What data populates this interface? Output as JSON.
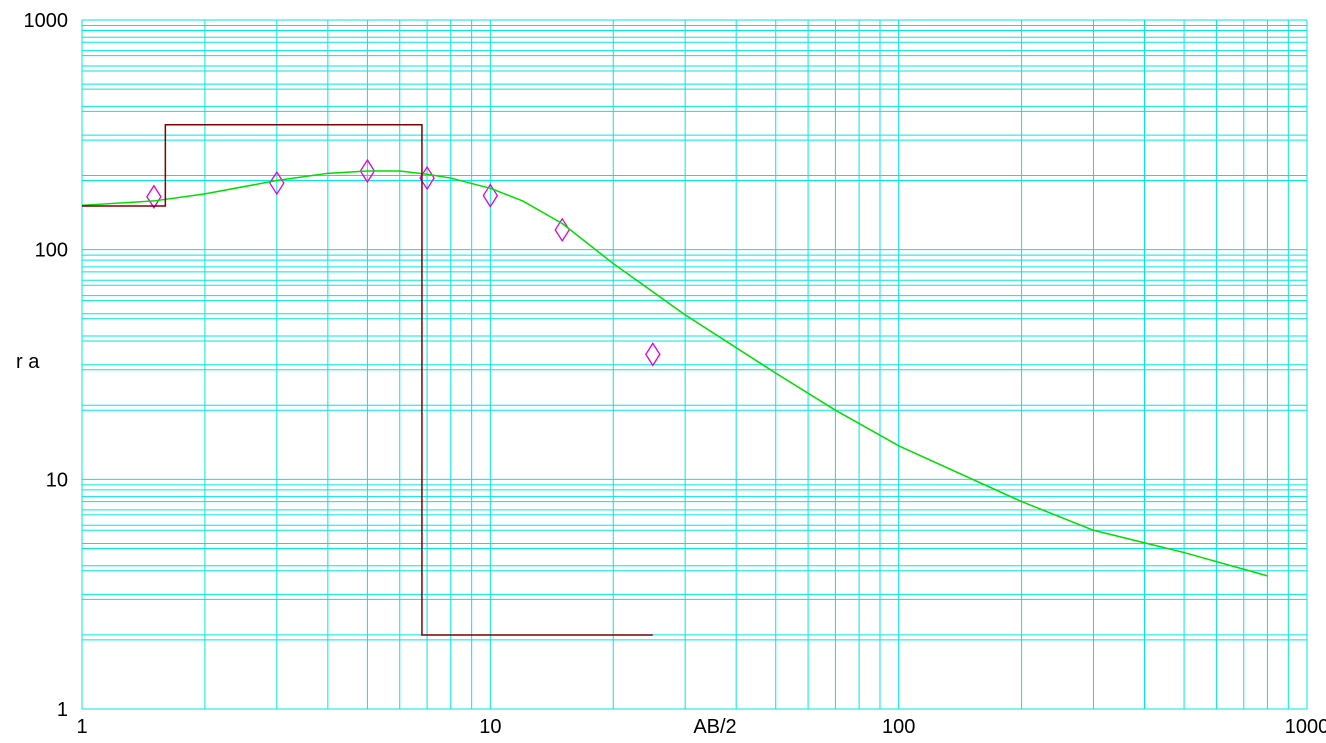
{
  "chart_data": {
    "type": "line",
    "title": "",
    "xlabel": "AB/2",
    "ylabel": "r a",
    "xscale": "log",
    "yscale": "log",
    "xlim": [
      1,
      1000
    ],
    "ylim": [
      1,
      1000
    ],
    "grid": true,
    "colors": {
      "grid": "#00e5e5",
      "model": "#800000",
      "fit": "#00dd00",
      "observed": "#e000e0"
    },
    "x_tick_labels": [
      "1",
      "10",
      "100",
      "1000"
    ],
    "y_tick_labels": [
      "1",
      "10",
      "100",
      "1000"
    ],
    "series": [
      {
        "kind": "observed-points",
        "marker": "diamond",
        "x": [
          1.5,
          3.0,
          5.0,
          7.0,
          10.0,
          15.0,
          25.0
        ],
        "y": [
          170,
          195,
          220,
          205,
          172,
          122,
          35
        ]
      },
      {
        "kind": "fitted-curve",
        "x": [
          1,
          1.5,
          2,
          3,
          4,
          5,
          6,
          7,
          8,
          10,
          12,
          15,
          20,
          30,
          50,
          70,
          100,
          200,
          300,
          500,
          800
        ],
        "y": [
          156,
          163,
          175,
          200,
          215,
          220,
          220,
          213,
          205,
          185,
          163,
          130,
          87,
          52,
          29,
          20,
          14,
          8,
          6,
          4.8,
          3.8
        ]
      },
      {
        "kind": "layer-model",
        "x": [
          1,
          1.6,
          1.6,
          6.8,
          6.8,
          25
        ],
        "y": [
          155,
          155,
          350,
          350,
          2.1,
          2.1
        ]
      }
    ]
  }
}
